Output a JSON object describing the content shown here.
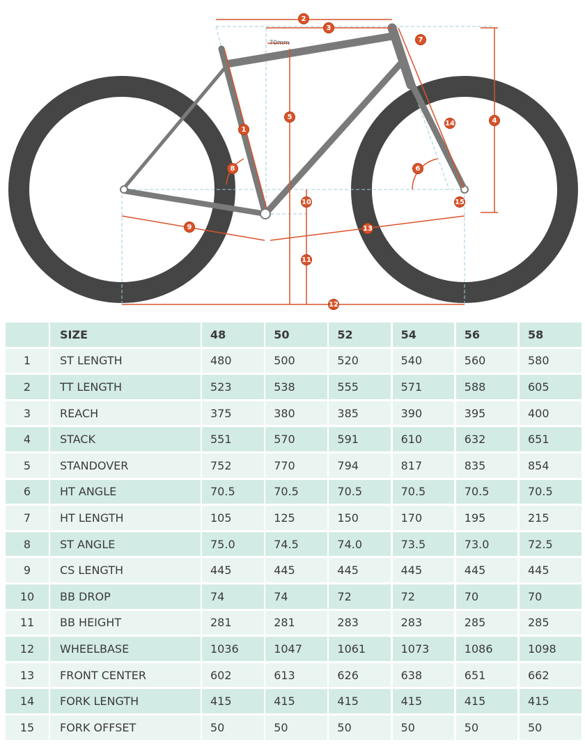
{
  "diagram": {
    "markers": [
      "1",
      "2",
      "3",
      "4",
      "5",
      "6",
      "7",
      "8",
      "9",
      "10",
      "11",
      "12",
      "13",
      "14",
      "15"
    ],
    "note": "70mm"
  },
  "table": {
    "header": [
      "SIZE",
      "48",
      "50",
      "52",
      "54",
      "56",
      "58"
    ],
    "rows": [
      [
        "1",
        "ST LENGTH",
        "480",
        "500",
        "520",
        "540",
        "560",
        "580"
      ],
      [
        "2",
        "TT LENGTH",
        "523",
        "538",
        "555",
        "571",
        "588",
        "605"
      ],
      [
        "3",
        "REACH",
        "375",
        "380",
        "385",
        "390",
        "395",
        "400"
      ],
      [
        "4",
        "STACK",
        "551",
        "570",
        "591",
        "610",
        "632",
        "651"
      ],
      [
        "5",
        "STANDOVER",
        "752",
        "770",
        "794",
        "817",
        "835",
        "854"
      ],
      [
        "6",
        "HT ANGLE",
        "70.5",
        "70.5",
        "70.5",
        "70.5",
        "70.5",
        "70.5"
      ],
      [
        "7",
        "HT LENGTH",
        "105",
        "125",
        "150",
        "170",
        "195",
        "215"
      ],
      [
        "8",
        "ST ANGLE",
        "75.0",
        "74.5",
        "74.0",
        "73.5",
        "73.0",
        "72.5"
      ],
      [
        "9",
        "CS LENGTH",
        "445",
        "445",
        "445",
        "445",
        "445",
        "445"
      ],
      [
        "10",
        "BB DROP",
        "74",
        "74",
        "72",
        "72",
        "70",
        "70"
      ],
      [
        "11",
        "BB HEIGHT",
        "281",
        "281",
        "283",
        "283",
        "285",
        "285"
      ],
      [
        "12",
        "WHEELBASE",
        "1036",
        "1047",
        "1061",
        "1073",
        "1086",
        "1098"
      ],
      [
        "13",
        "FRONT CENTER",
        "602",
        "613",
        "626",
        "638",
        "651",
        "662"
      ],
      [
        "14",
        "FORK LENGTH",
        "415",
        "415",
        "415",
        "415",
        "415",
        "415"
      ],
      [
        "15",
        "FORK OFFSET",
        "50",
        "50",
        "50",
        "50",
        "50",
        "50"
      ]
    ]
  }
}
